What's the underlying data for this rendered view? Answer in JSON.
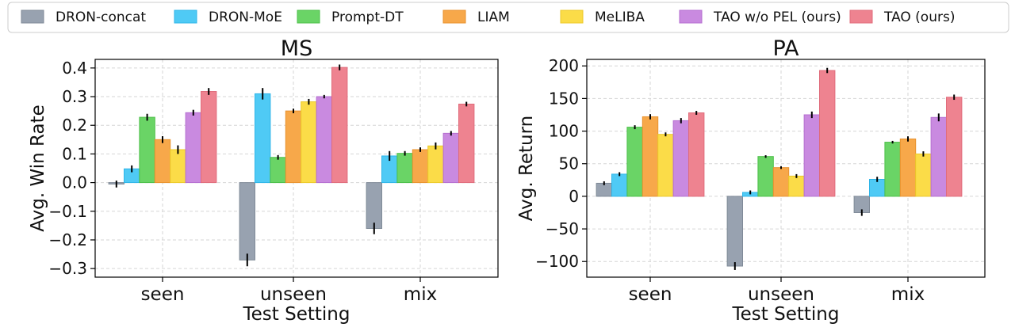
{
  "chart_data": [
    {
      "type": "bar",
      "title": "MS",
      "xlabel": "Test Setting",
      "ylabel": "Avg. Win Rate",
      "categories": [
        "seen",
        "unseen",
        "mix"
      ],
      "ylim": [
        -0.33,
        0.43
      ],
      "yticks": [
        -0.3,
        -0.2,
        -0.1,
        0.0,
        0.1,
        0.2,
        0.3,
        0.4
      ],
      "ytick_labels": [
        "−0.3",
        "−0.2",
        "−0.1",
        "0.0",
        "0.1",
        "0.2",
        "0.3",
        "0.4"
      ],
      "grid": true,
      "series": [
        {
          "name": "DRON-concat",
          "values": [
            -0.005,
            -0.27,
            -0.16
          ],
          "errors": [
            0.012,
            0.022,
            0.02
          ]
        },
        {
          "name": "DRON-MoE",
          "values": [
            0.048,
            0.31,
            0.093
          ],
          "errors": [
            0.012,
            0.02,
            0.017
          ]
        },
        {
          "name": "Prompt-DT",
          "values": [
            0.228,
            0.088,
            0.102
          ],
          "errors": [
            0.012,
            0.008,
            0.008
          ]
        },
        {
          "name": "LIAM",
          "values": [
            0.15,
            0.25,
            0.115
          ],
          "errors": [
            0.012,
            0.008,
            0.008
          ]
        },
        {
          "name": "MeLIBA",
          "values": [
            0.115,
            0.282,
            0.128
          ],
          "errors": [
            0.015,
            0.01,
            0.012
          ]
        },
        {
          "name": "TAO w/o PEL (ours)",
          "values": [
            0.244,
            0.3,
            0.172
          ],
          "errors": [
            0.01,
            0.006,
            0.008
          ]
        },
        {
          "name": "TAO (ours)",
          "values": [
            0.318,
            0.402,
            0.274
          ],
          "errors": [
            0.012,
            0.01,
            0.008
          ]
        }
      ]
    },
    {
      "type": "bar",
      "title": "PA",
      "xlabel": "Test Setting",
      "ylabel": "Avg. Return",
      "categories": [
        "seen",
        "unseen",
        "mix"
      ],
      "ylim": [
        -124,
        210
      ],
      "yticks": [
        -100,
        -50,
        0,
        50,
        100,
        150,
        200
      ],
      "ytick_labels": [
        "−100",
        "−50",
        "0",
        "50",
        "100",
        "150",
        "200"
      ],
      "grid": true,
      "series": [
        {
          "name": "DRON-concat",
          "values": [
            20,
            -107,
            -25
          ],
          "errors": [
            3,
            6,
            5
          ]
        },
        {
          "name": "DRON-MoE",
          "values": [
            34,
            6,
            26
          ],
          "errors": [
            3,
            3,
            4
          ]
        },
        {
          "name": "Prompt-DT",
          "values": [
            106,
            61,
            83
          ],
          "errors": [
            3,
            2,
            2
          ]
        },
        {
          "name": "LIAM",
          "values": [
            122,
            44,
            88
          ],
          "errors": [
            4,
            2,
            4
          ]
        },
        {
          "name": "MeLIBA",
          "values": [
            95,
            31,
            65
          ],
          "errors": [
            3,
            3,
            4
          ]
        },
        {
          "name": "TAO w/o PEL (ours)",
          "values": [
            116,
            125,
            121
          ],
          "errors": [
            4,
            5,
            6
          ]
        },
        {
          "name": "TAO (ours)",
          "values": [
            128,
            193,
            152
          ],
          "errors": [
            3,
            4,
            4
          ]
        }
      ]
    }
  ],
  "legend": {
    "placement": "top",
    "entries": [
      "DRON-concat",
      "DRON-MoE",
      "Prompt-DT",
      "LIAM",
      "MeLIBA",
      "TAO w/o PEL (ours)",
      "TAO (ours)"
    ],
    "colors": {
      "fills": [
        "#98a2b0",
        "#4fcaf5",
        "#6ad466",
        "#f7a84a",
        "#fbdc48",
        "#c98ae0",
        "#ee8390"
      ],
      "edges": [
        "#7f8a97",
        "#2fb5e8",
        "#4cbf49",
        "#e8922e",
        "#ecc929",
        "#b56fd0",
        "#e06c7b"
      ]
    }
  }
}
